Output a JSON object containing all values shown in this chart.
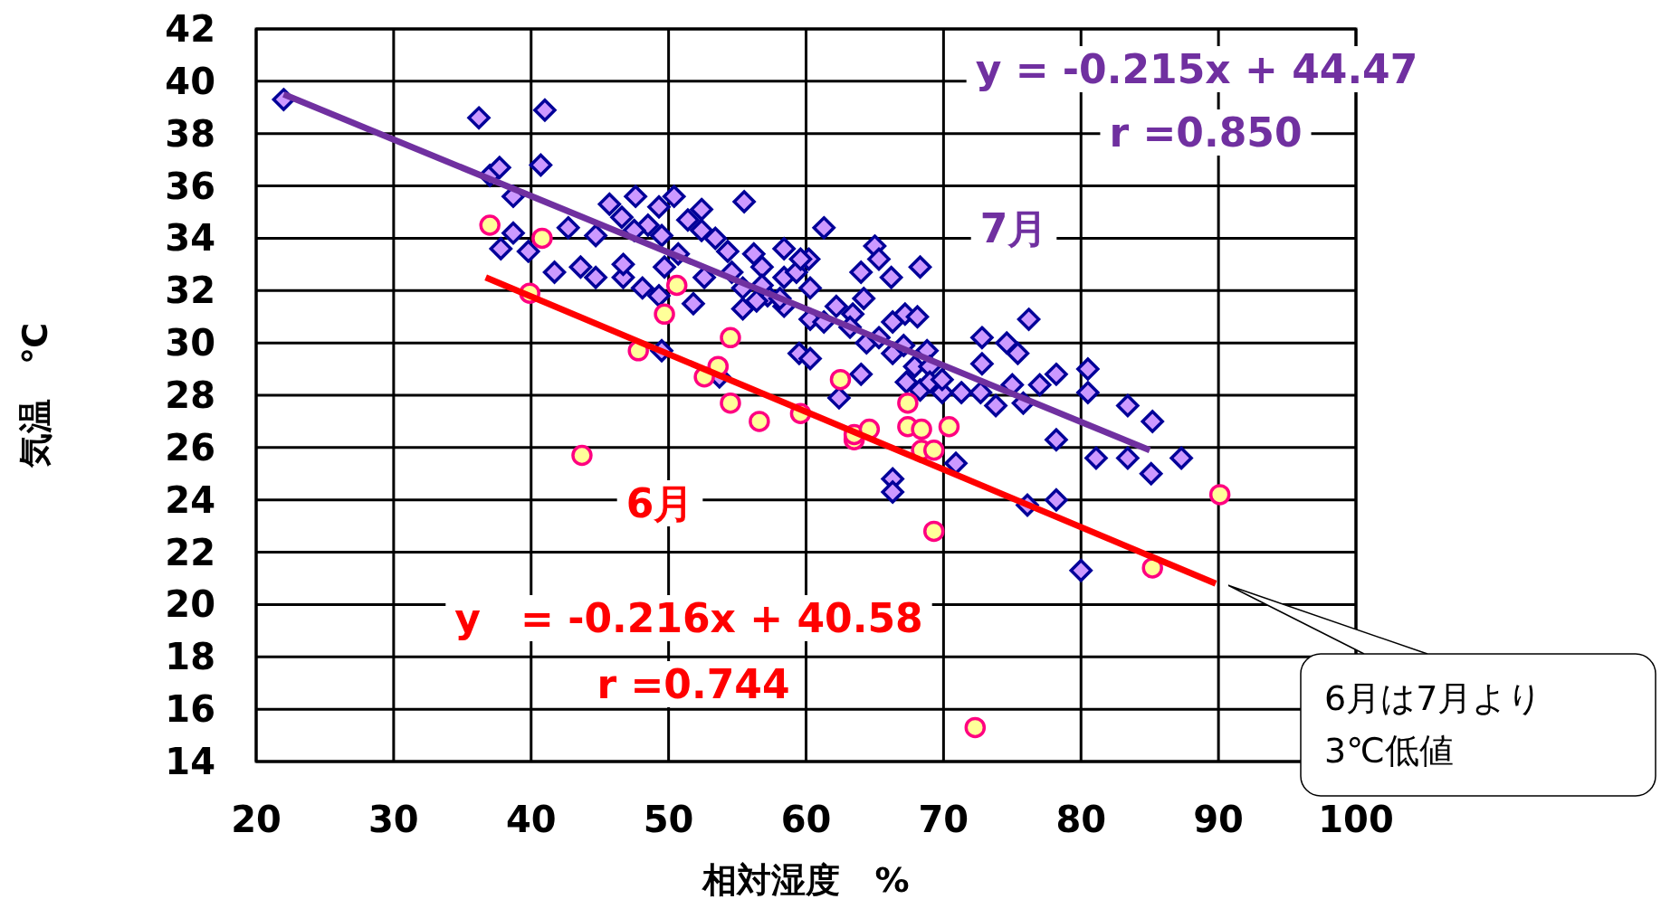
{
  "chart_data": {
    "type": "scatter",
    "xlabel": "相対湿度　%",
    "ylabel": "気温　℃",
    "xlim": [
      20,
      100
    ],
    "ylim": [
      14,
      42
    ],
    "xticks": [
      20,
      30,
      40,
      50,
      60,
      70,
      80,
      90,
      100
    ],
    "yticks": [
      14,
      16,
      18,
      20,
      22,
      24,
      26,
      28,
      30,
      32,
      34,
      36,
      38,
      40,
      42
    ],
    "grid": true,
    "series": [
      {
        "marker": "diamond",
        "color": "#cc99ff",
        "x": [
          22.0,
          36.2,
          41.0,
          40.7,
          37.0,
          37.7,
          38.7,
          37.8,
          38.7,
          39.8,
          41.7,
          42.7,
          43.6,
          44.7,
          44.7,
          45.7,
          46.7,
          46.6,
          47.6,
          48.5,
          49.3,
          50.4,
          49.5,
          49.7,
          50.7,
          51.4,
          52.4,
          52.4,
          53.4,
          51.8,
          52.6,
          54.3,
          55.5,
          54.6,
          55.4,
          56.2,
          56.8,
          57.2,
          58.4,
          58.4,
          59.3,
          58.4,
          60.2,
          60.3,
          60.3,
          61.3,
          61.3,
          62.2,
          63.4,
          59.5,
          60.3,
          62.4,
          64.0,
          65.0,
          65.3,
          64.2,
          66.2,
          63.2,
          64.4,
          65.3,
          66.3,
          66.3,
          67.2,
          68.1,
          68.3,
          67.1,
          67.9,
          68.8,
          69.0,
          67.3,
          68.3,
          69.9,
          69.0,
          69.9,
          64.0,
          66.3,
          66.3,
          70.9,
          71.3,
          72.7,
          72.8,
          72.8,
          74.6,
          75.4,
          76.2,
          73.8,
          75.0,
          75.8,
          77.0,
          78.2,
          78.2,
          76.1,
          78.2,
          80.5,
          80.5,
          81.1,
          80.0,
          83.4,
          83.4,
          85.2,
          85.1,
          87.3,
          49.5,
          48.1,
          49.3,
          53.7,
          55.4,
          56.4,
          58.1,
          46.7,
          47.5,
          56.8,
          59.6
        ],
        "values": [
          39.3,
          38.6,
          38.9,
          36.8,
          36.4,
          36.7,
          35.6,
          33.6,
          34.2,
          33.5,
          32.7,
          34.4,
          32.9,
          32.5,
          34.1,
          35.3,
          32.5,
          34.8,
          35.6,
          34.5,
          35.2,
          35.6,
          34.1,
          32.9,
          33.4,
          34.7,
          35.1,
          34.3,
          34.0,
          31.5,
          32.5,
          33.5,
          35.4,
          32.7,
          32.1,
          33.4,
          32.9,
          31.8,
          33.6,
          32.5,
          32.7,
          31.4,
          33.2,
          32.1,
          30.9,
          34.4,
          30.8,
          31.4,
          31.1,
          29.6,
          29.4,
          27.9,
          32.7,
          33.7,
          33.2,
          31.7,
          32.5,
          30.6,
          30.0,
          30.2,
          29.6,
          30.8,
          31.1,
          31.0,
          32.9,
          29.9,
          29.1,
          29.7,
          29.1,
          28.5,
          28.2,
          28.1,
          28.5,
          28.6,
          28.8,
          24.8,
          24.3,
          25.4,
          28.1,
          28.1,
          30.2,
          29.2,
          30.0,
          29.6,
          30.9,
          27.6,
          28.4,
          27.7,
          28.4,
          28.8,
          26.3,
          23.8,
          24.0,
          29.0,
          28.1,
          25.6,
          21.3,
          27.6,
          25.6,
          27.0,
          25.0,
          25.6,
          29.7,
          32.1,
          31.8,
          28.7,
          31.3,
          31.6,
          31.7,
          33.0,
          34.3,
          32.2,
          33.2
        ]
      },
      {
        "marker": "circle",
        "color": "#ffff99",
        "x": [
          37.0,
          40.8,
          39.9,
          49.7,
          50.6,
          47.8,
          43.7,
          54.5,
          53.6,
          52.6,
          54.5,
          56.6,
          59.6,
          62.5,
          63.5,
          63.5,
          64.6,
          67.4,
          67.4,
          68.4,
          68.4,
          69.3,
          70.4,
          69.3,
          72.3,
          85.2,
          90.1
        ],
        "values": [
          34.5,
          34.0,
          31.9,
          31.1,
          32.2,
          29.7,
          25.7,
          30.2,
          29.1,
          28.7,
          27.7,
          27.0,
          27.3,
          28.6,
          26.3,
          26.5,
          26.7,
          27.7,
          26.8,
          26.7,
          25.9,
          25.9,
          26.8,
          22.8,
          15.3,
          21.4,
          24.2
        ]
      },
      {
        "type": "line",
        "color": "#7030a0",
        "x": [
          22.0,
          85.0
        ],
        "values": [
          39.5,
          25.9
        ]
      },
      {
        "type": "line",
        "color": "#ff0000",
        "x": [
          36.7,
          89.8
        ],
        "values": [
          32.5,
          20.8
        ]
      }
    ],
    "annotations": [
      "y = -0.215x + 44.47",
      "r =0.850",
      "7月",
      "6月",
      "y　= -0.216x + 40.58",
      "r =0.744",
      "6月は7月より\n3℃低値"
    ]
  }
}
